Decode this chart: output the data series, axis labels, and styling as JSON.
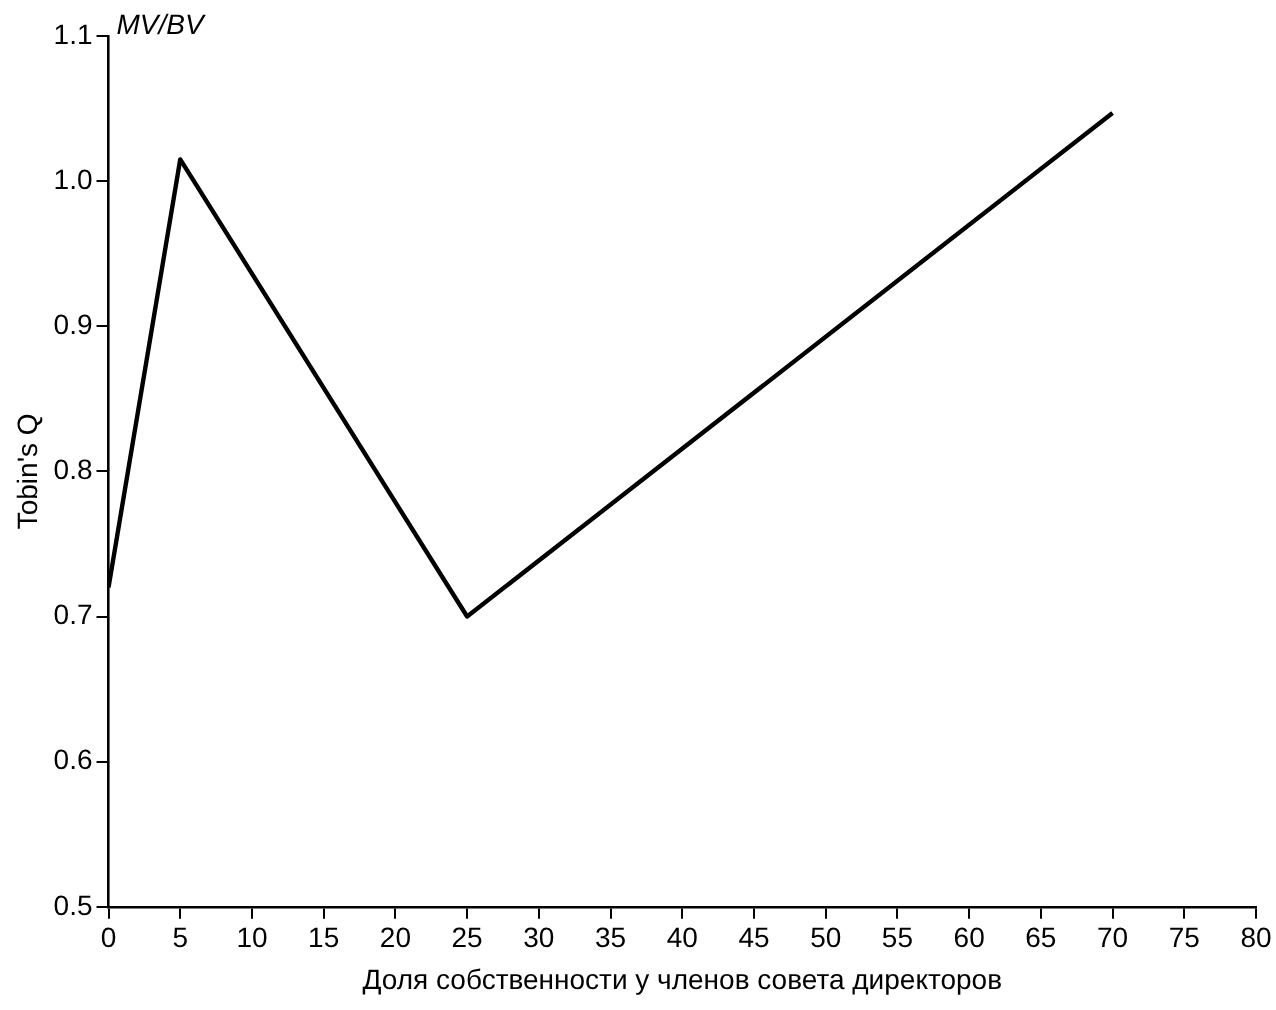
{
  "chart_data": {
    "type": "line",
    "xlabel": "Доля собственности у членов совета директоров",
    "ylabel": "Tobin's Q",
    "annotations": [
      "MV/BV"
    ],
    "x": [
      0,
      5,
      25,
      70
    ],
    "series": [
      {
        "color": "#000000",
        "values": [
          0.72,
          1.015,
          0.7,
          1.047
        ]
      }
    ],
    "xlim": [
      0,
      80
    ],
    "xticks": [
      0,
      5,
      10,
      15,
      20,
      25,
      30,
      35,
      40,
      45,
      50,
      55,
      60,
      65,
      70,
      75,
      80
    ],
    "ylim": [
      0.5,
      1.1
    ],
    "yticks": [
      0.5,
      0.6,
      0.7,
      0.8,
      0.9,
      {
        "value": 1,
        "label": "1.0"
      },
      1.1
    ],
    "grid": false,
    "legend": false,
    "marker": "none",
    "line_style": "solid"
  }
}
